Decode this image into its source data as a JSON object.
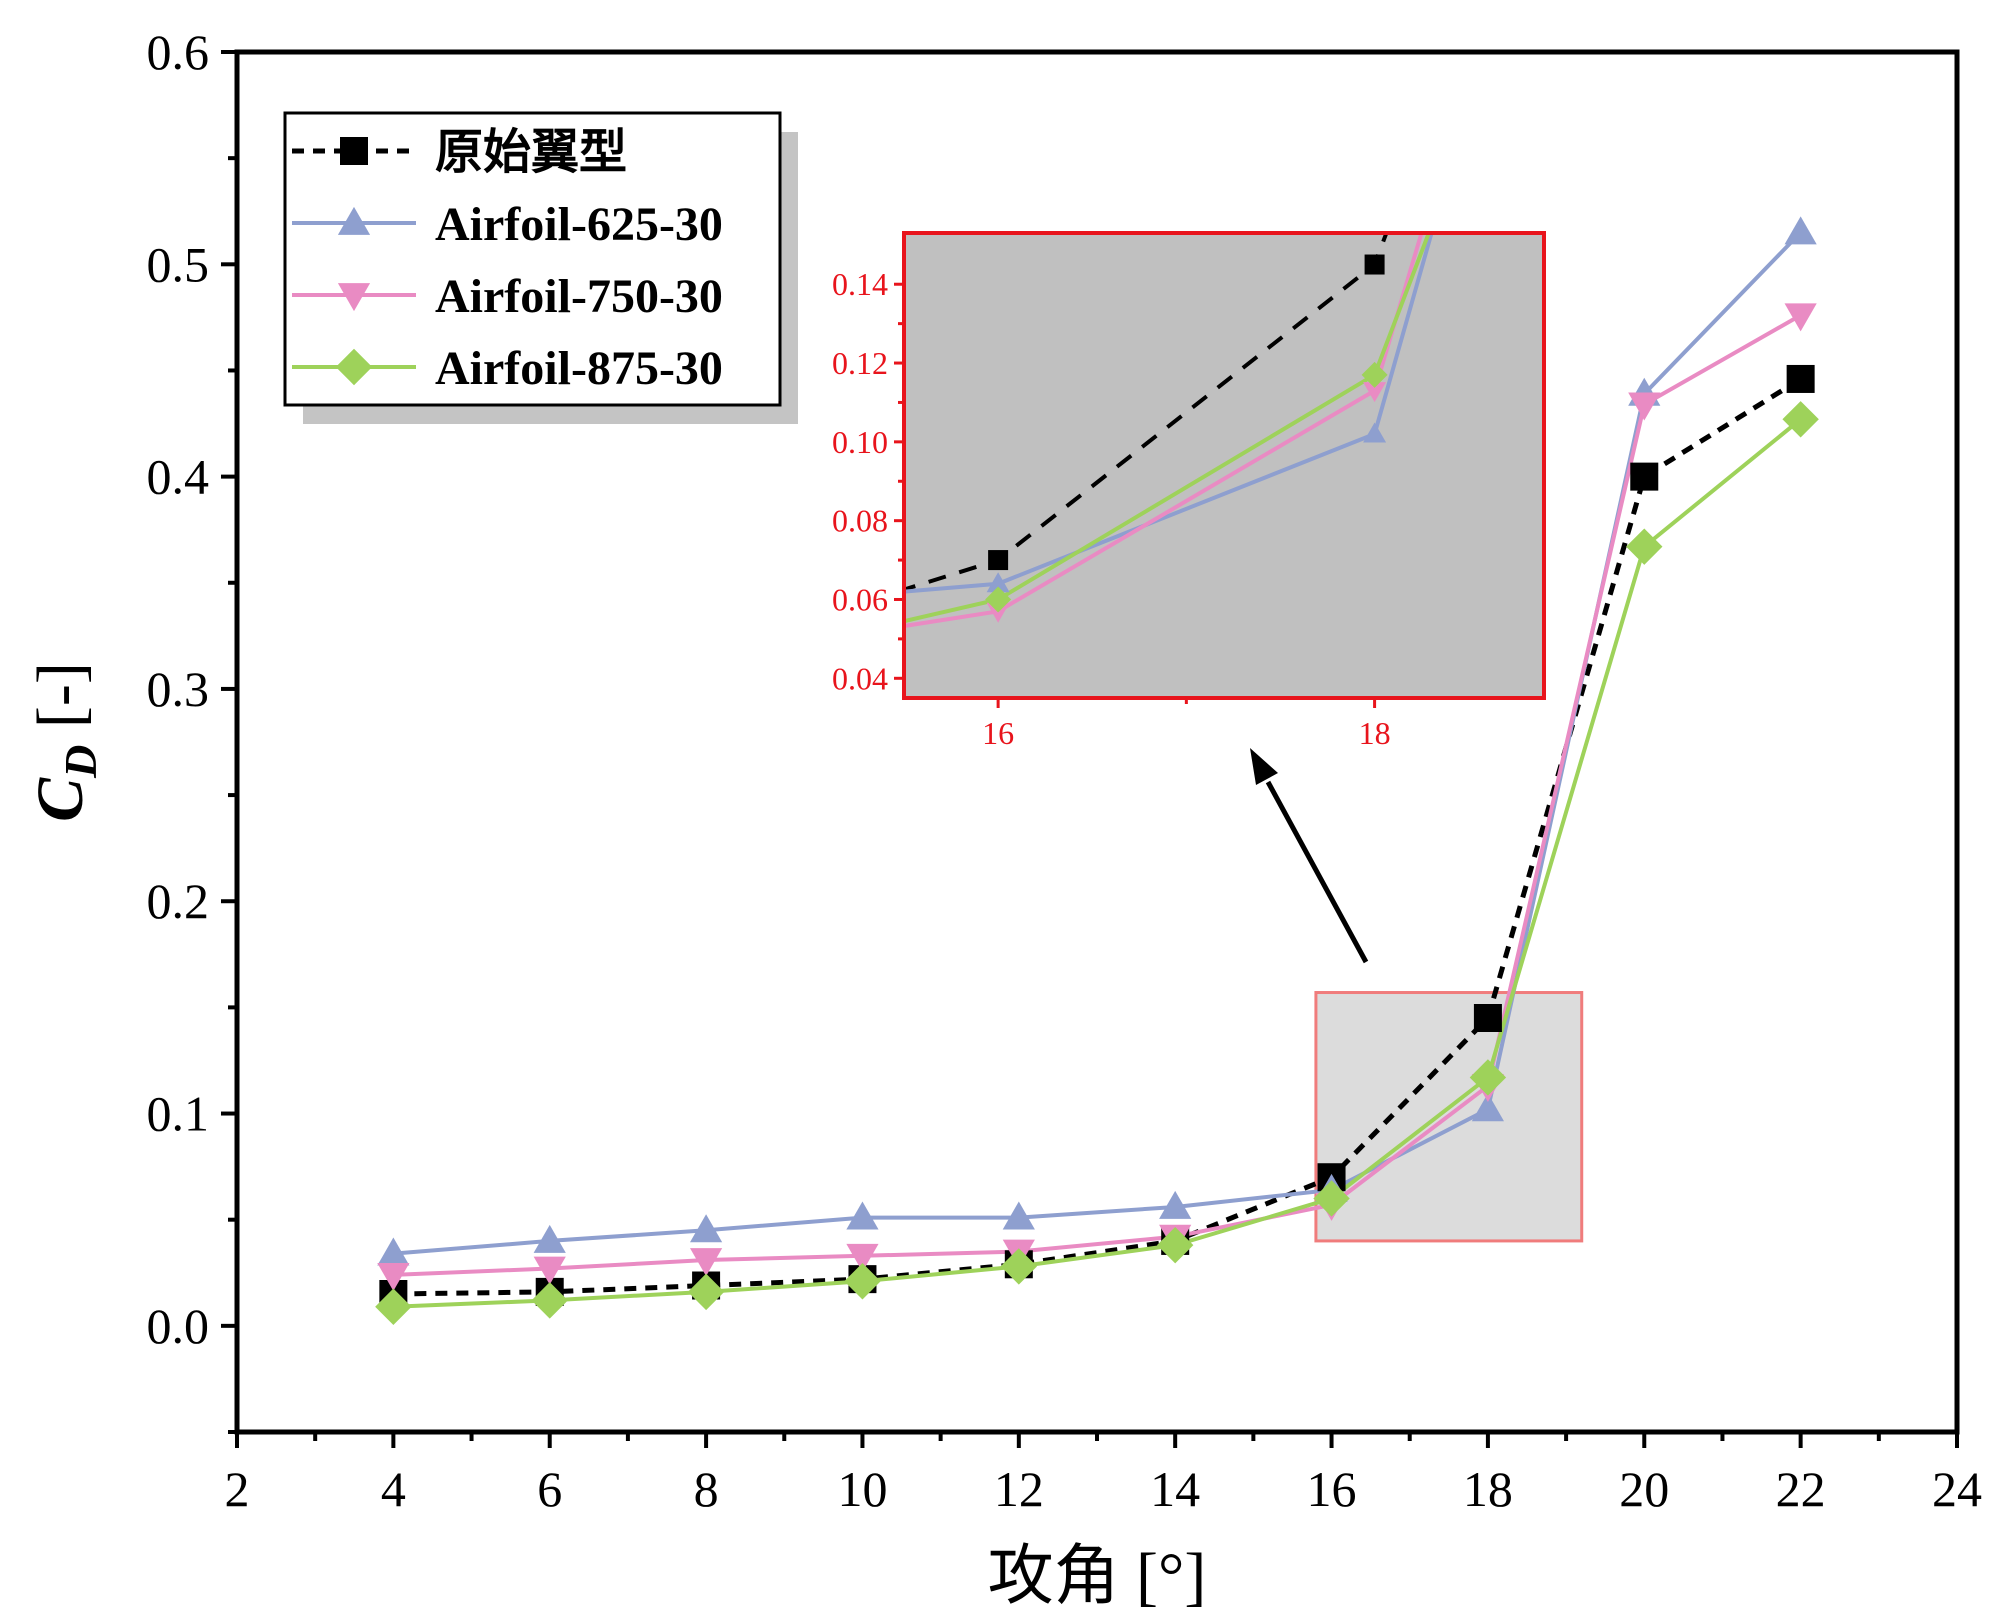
{
  "chart_data": {
    "type": "line",
    "title": "",
    "xlabel": "攻角 [°]",
    "ylabel": {
      "symbol": "C",
      "subscript": "D",
      "unit": " [-]"
    },
    "xlim": [
      2,
      24
    ],
    "ylim": [
      -0.05,
      0.6
    ],
    "xticks": [
      2,
      4,
      6,
      8,
      10,
      12,
      14,
      16,
      18,
      20,
      22,
      24
    ],
    "yticks": [
      0.0,
      0.1,
      0.2,
      0.3,
      0.4,
      0.5,
      0.6
    ],
    "ytick_labels": [
      "0.0",
      "0.1",
      "0.2",
      "0.3",
      "0.4",
      "0.5",
      "0.6"
    ],
    "x": [
      4,
      6,
      8,
      10,
      12,
      14,
      16,
      18,
      20,
      22
    ],
    "series": [
      {
        "name": "原始翼型",
        "marker": "square",
        "color": "#000000",
        "dash": true,
        "values": [
          0.015,
          0.016,
          0.019,
          0.022,
          0.029,
          0.04,
          0.07,
          0.145,
          0.4,
          0.446
        ]
      },
      {
        "name": "Airfoil-625-30",
        "marker": "triangle-up",
        "color": "#8e9fcf",
        "dash": false,
        "values": [
          0.034,
          0.04,
          0.045,
          0.051,
          0.051,
          0.056,
          0.064,
          0.102,
          0.439,
          0.515
        ]
      },
      {
        "name": "Airfoil-750-30",
        "marker": "triangle-down",
        "color": "#e98bc3",
        "dash": false,
        "values": [
          0.024,
          0.027,
          0.031,
          0.033,
          0.035,
          0.042,
          0.057,
          0.113,
          0.434,
          0.476
        ]
      },
      {
        "name": "Airfoil-875-30",
        "marker": "diamond",
        "color": "#9ed25a",
        "dash": false,
        "values": [
          0.009,
          0.012,
          0.016,
          0.021,
          0.028,
          0.038,
          0.06,
          0.117,
          0.367,
          0.427
        ]
      }
    ],
    "legend": {
      "placement": "top-left"
    },
    "inset": {
      "region_x": [
        15.8,
        19.2
      ],
      "region_y": [
        0.04,
        0.157
      ],
      "xlim": [
        15.5,
        18.9
      ],
      "ylim": [
        0.035,
        0.153
      ],
      "xticks": [
        16,
        18
      ],
      "xtick_labels": [
        "16",
        "18"
      ],
      "yticks": [
        0.04,
        0.06,
        0.08,
        0.1,
        0.12,
        0.14
      ],
      "ytick_labels": [
        "0.04",
        "0.06",
        "0.08",
        "0.10",
        "0.12",
        "0.14"
      ],
      "accent_color": "#e8141c",
      "placement": "upper-middle"
    }
  }
}
